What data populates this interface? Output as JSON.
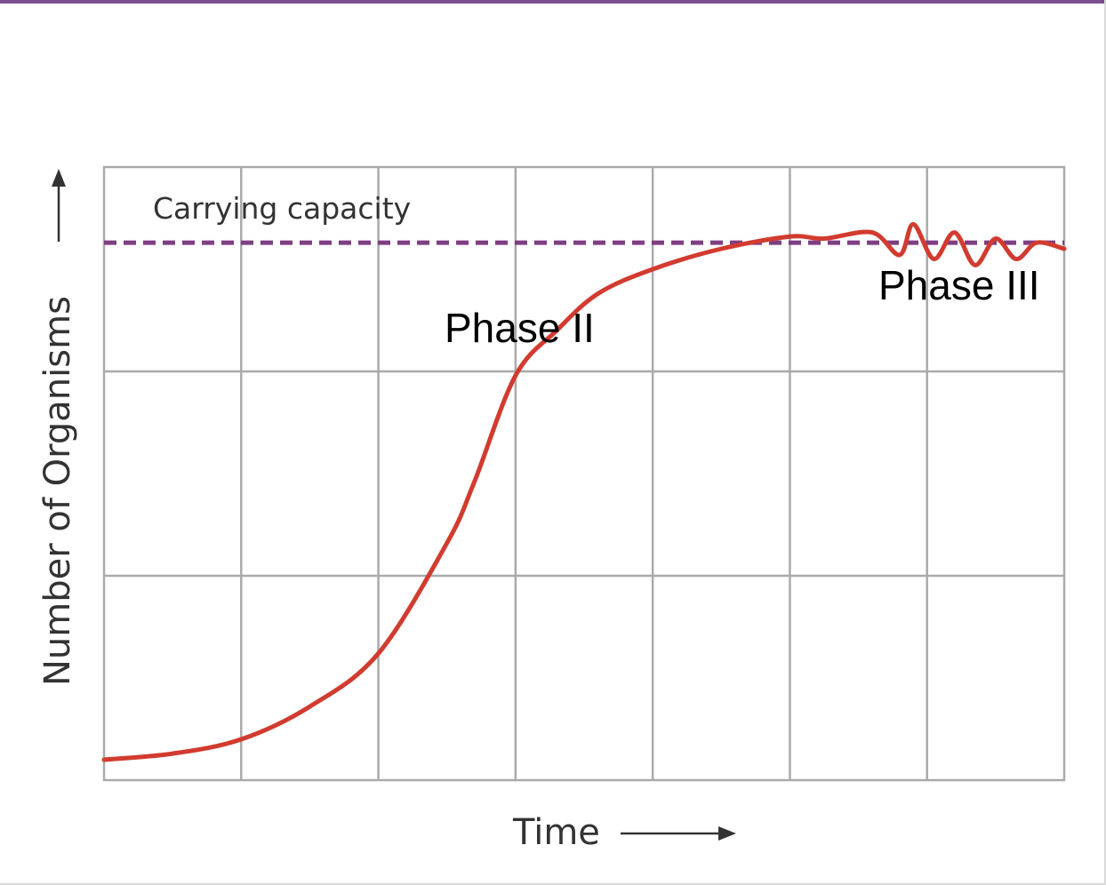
{
  "colors": {
    "top_rule": "#7b4f8f",
    "grid": "#aaaaaa",
    "curve": "#d23b2f",
    "capacity_line": "#7e3e82",
    "text": "#333333"
  },
  "chart_data": {
    "type": "line",
    "title": "",
    "xlabel": "Time",
    "ylabel": "Number of Organisms",
    "xlim": [
      0,
      7
    ],
    "ylim": [
      0,
      3
    ],
    "grid": true,
    "x_gridlines": 7,
    "y_gridlines": 3,
    "carrying_capacity": {
      "label": "Carrying capacity",
      "value": 2.63,
      "style": "dashed"
    },
    "annotations": [
      {
        "text": "Phase II",
        "x": 2.6,
        "y": 2.1
      },
      {
        "text": "Phase III",
        "x": 5.9,
        "y": 2.35
      }
    ],
    "series": [
      {
        "x": [
          0,
          0.5,
          1,
          1.5,
          2,
          2.5,
          2.7,
          3,
          3.3,
          3.6,
          4,
          4.5,
          5,
          5.25,
          5.6,
          5.8,
          5.9,
          6.05,
          6.2,
          6.35,
          6.5,
          6.65,
          6.8,
          7
        ],
        "y": [
          0.1,
          0.13,
          0.2,
          0.36,
          0.62,
          1.16,
          1.46,
          1.98,
          2.2,
          2.38,
          2.5,
          2.6,
          2.66,
          2.65,
          2.68,
          2.57,
          2.72,
          2.55,
          2.68,
          2.52,
          2.65,
          2.55,
          2.63,
          2.6
        ]
      }
    ]
  }
}
